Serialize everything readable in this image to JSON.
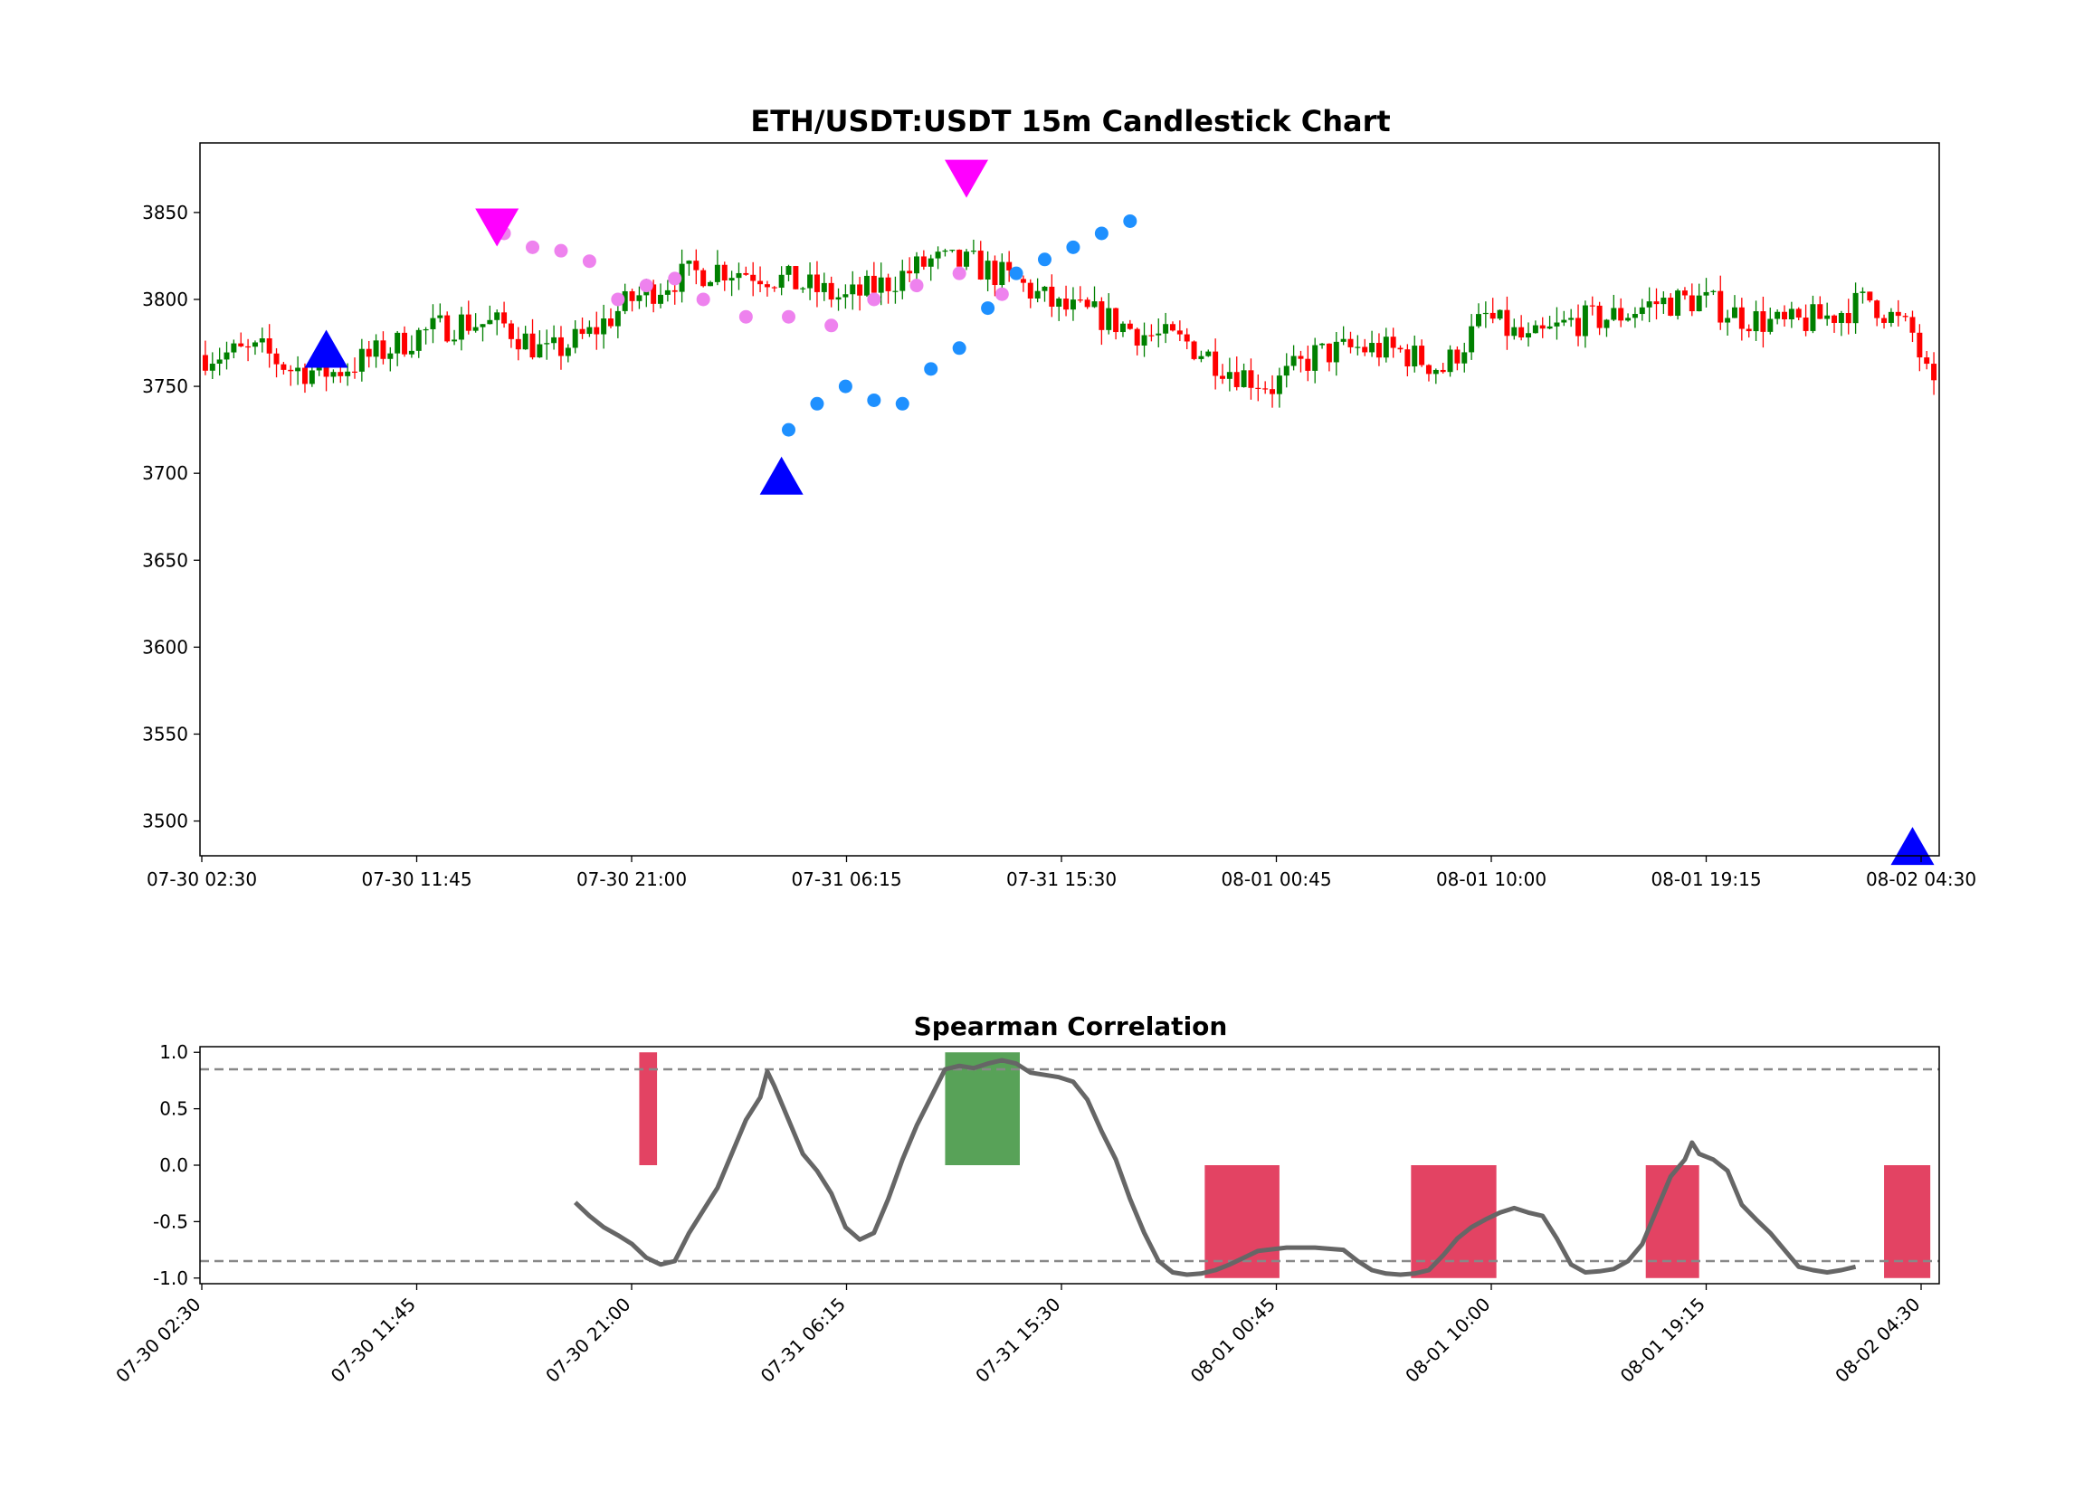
{
  "chart_data": [
    {
      "type": "candlestick",
      "title": "ETH/USDT:USDT 15m Candlestick Chart",
      "x_ticks": [
        "07-30 02:30",
        "07-30 11:45",
        "07-30 21:00",
        "07-31 06:15",
        "07-31 15:30",
        "08-01 00:45",
        "08-01 10:00",
        "08-01 19:15",
        "08-02 04:30"
      ],
      "y_ticks": [
        3500,
        3550,
        3600,
        3650,
        3700,
        3750,
        3800,
        3850
      ],
      "ylim": [
        3480,
        3890
      ],
      "bar_count": 244,
      "colors": {
        "up": "#008000",
        "down": "#ff0000",
        "buy_marker": "#0000ff",
        "sell_marker": "#ff00ff",
        "dots_bear": "#ee82ee",
        "dots_bull": "#1e90ff"
      },
      "close_path": [
        [
          0,
          3768
        ],
        [
          8,
          3770
        ],
        [
          12,
          3760
        ],
        [
          18,
          3758
        ],
        [
          26,
          3772
        ],
        [
          30,
          3780
        ],
        [
          36,
          3787
        ],
        [
          42,
          3785
        ],
        [
          48,
          3768
        ],
        [
          54,
          3780
        ],
        [
          60,
          3800
        ],
        [
          66,
          3812
        ],
        [
          72,
          3818
        ],
        [
          78,
          3815
        ],
        [
          84,
          3808
        ],
        [
          90,
          3800
        ],
        [
          96,
          3810
        ],
        [
          102,
          3822
        ],
        [
          108,
          3820
        ],
        [
          114,
          3810
        ],
        [
          120,
          3795
        ],
        [
          126,
          3790
        ],
        [
          132,
          3780
        ],
        [
          138,
          3775
        ],
        [
          144,
          3760
        ],
        [
          150,
          3750
        ],
        [
          156,
          3768
        ],
        [
          162,
          3772
        ],
        [
          168,
          3770
        ],
        [
          174,
          3760
        ],
        [
          180,
          3790
        ],
        [
          186,
          3775
        ],
        [
          192,
          3787
        ],
        [
          198,
          3790
        ],
        [
          204,
          3798
        ],
        [
          210,
          3800
        ],
        [
          216,
          3790
        ],
        [
          222,
          3785
        ],
        [
          228,
          3790
        ],
        [
          234,
          3800
        ],
        [
          240,
          3780
        ],
        [
          243,
          3745
        ]
      ],
      "buy_signals": [
        {
          "i": 17,
          "price": 3768
        },
        {
          "i": 81,
          "price": 3695
        },
        {
          "i": 240,
          "price": 3482
        }
      ],
      "sell_signals": [
        {
          "i": 41,
          "price": 3845
        },
        {
          "i": 107,
          "price": 3873
        }
      ],
      "dot_series": [
        {
          "color_key": "dots_bear",
          "points": [
            [
              42,
              3838
            ],
            [
              46,
              3830
            ],
            [
              50,
              3828
            ],
            [
              54,
              3822
            ],
            [
              58,
              3800
            ],
            [
              62,
              3808
            ],
            [
              66,
              3812
            ],
            [
              70,
              3800
            ],
            [
              76,
              3790
            ],
            [
              82,
              3790
            ],
            [
              88,
              3785
            ],
            [
              94,
              3800
            ],
            [
              100,
              3808
            ],
            [
              106,
              3815
            ],
            [
              112,
              3803
            ]
          ]
        },
        {
          "color_key": "dots_bull",
          "points": [
            [
              82,
              3725
            ],
            [
              86,
              3740
            ],
            [
              90,
              3750
            ],
            [
              94,
              3742
            ],
            [
              98,
              3740
            ],
            [
              102,
              3760
            ],
            [
              106,
              3772
            ],
            [
              110,
              3795
            ],
            [
              114,
              3815
            ],
            [
              118,
              3823
            ],
            [
              122,
              3830
            ],
            [
              126,
              3838
            ],
            [
              130,
              3845
            ]
          ]
        }
      ]
    },
    {
      "type": "line",
      "title": "Spearman Correlation",
      "x_ticks": [
        "07-30 02:30",
        "07-30 11:45",
        "07-30 21:00",
        "07-31 06:15",
        "07-31 15:30",
        "08-01 00:45",
        "08-01 10:00",
        "08-01 19:15",
        "08-02 04:30"
      ],
      "y_ticks": [
        "1.0",
        "0.5",
        "0.0",
        "-0.5",
        "-1.0"
      ],
      "ylim": [
        -1.05,
        1.05
      ],
      "thresholds": [
        0.85,
        -0.85
      ],
      "line_color": "#666666",
      "series": [
        [
          52,
          -0.33
        ],
        [
          54,
          -0.45
        ],
        [
          56,
          -0.55
        ],
        [
          58,
          -0.62
        ],
        [
          60,
          -0.7
        ],
        [
          62,
          -0.82
        ],
        [
          64,
          -0.88
        ],
        [
          66,
          -0.85
        ],
        [
          68,
          -0.6
        ],
        [
          70,
          -0.4
        ],
        [
          72,
          -0.2
        ],
        [
          74,
          0.1
        ],
        [
          76,
          0.4
        ],
        [
          78,
          0.6
        ],
        [
          79,
          0.83
        ],
        [
          80,
          0.7
        ],
        [
          82,
          0.4
        ],
        [
          84,
          0.1
        ],
        [
          86,
          -0.05
        ],
        [
          88,
          -0.25
        ],
        [
          90,
          -0.55
        ],
        [
          92,
          -0.66
        ],
        [
          94,
          -0.6
        ],
        [
          96,
          -0.3
        ],
        [
          98,
          0.05
        ],
        [
          100,
          0.35
        ],
        [
          102,
          0.6
        ],
        [
          104,
          0.85
        ],
        [
          106,
          0.88
        ],
        [
          108,
          0.86
        ],
        [
          110,
          0.9
        ],
        [
          112,
          0.93
        ],
        [
          114,
          0.9
        ],
        [
          116,
          0.82
        ],
        [
          118,
          0.8
        ],
        [
          120,
          0.78
        ],
        [
          122,
          0.74
        ],
        [
          124,
          0.58
        ],
        [
          126,
          0.3
        ],
        [
          128,
          0.05
        ],
        [
          130,
          -0.3
        ],
        [
          132,
          -0.6
        ],
        [
          134,
          -0.85
        ],
        [
          136,
          -0.95
        ],
        [
          138,
          -0.97
        ],
        [
          140,
          -0.96
        ],
        [
          142,
          -0.93
        ],
        [
          144,
          -0.88
        ],
        [
          146,
          -0.82
        ],
        [
          148,
          -0.76
        ],
        [
          152,
          -0.73
        ],
        [
          156,
          -0.73
        ],
        [
          160,
          -0.75
        ],
        [
          162,
          -0.85
        ],
        [
          164,
          -0.93
        ],
        [
          166,
          -0.96
        ],
        [
          168,
          -0.97
        ],
        [
          170,
          -0.96
        ],
        [
          172,
          -0.93
        ],
        [
          174,
          -0.8
        ],
        [
          176,
          -0.65
        ],
        [
          178,
          -0.55
        ],
        [
          180,
          -0.48
        ],
        [
          182,
          -0.42
        ],
        [
          184,
          -0.38
        ],
        [
          186,
          -0.42
        ],
        [
          188,
          -0.45
        ],
        [
          190,
          -0.65
        ],
        [
          192,
          -0.88
        ],
        [
          194,
          -0.95
        ],
        [
          196,
          -0.94
        ],
        [
          198,
          -0.92
        ],
        [
          200,
          -0.85
        ],
        [
          202,
          -0.7
        ],
        [
          204,
          -0.4
        ],
        [
          206,
          -0.1
        ],
        [
          208,
          0.05
        ],
        [
          209,
          0.2
        ],
        [
          210,
          0.1
        ],
        [
          212,
          0.05
        ],
        [
          214,
          -0.05
        ],
        [
          216,
          -0.35
        ],
        [
          218,
          -0.48
        ],
        [
          220,
          -0.6
        ],
        [
          222,
          -0.75
        ],
        [
          224,
          -0.9
        ],
        [
          226,
          -0.93
        ],
        [
          228,
          -0.95
        ],
        [
          230,
          -0.93
        ],
        [
          232,
          -0.9
        ]
      ],
      "regions": [
        {
          "from": 61,
          "to": 63.5,
          "value": 1,
          "color": "#dc143c"
        },
        {
          "from": 104,
          "to": 114.5,
          "value": 1,
          "color": "#2e8b2e"
        },
        {
          "from": 140.5,
          "to": 151,
          "value": -1,
          "color": "#dc143c"
        },
        {
          "from": 169.5,
          "to": 181.5,
          "value": -1,
          "color": "#dc143c"
        },
        {
          "from": 202.5,
          "to": 210,
          "value": -1,
          "color": "#dc143c"
        },
        {
          "from": 236,
          "to": 242.5,
          "value": -1,
          "color": "#dc143c"
        }
      ]
    }
  ]
}
